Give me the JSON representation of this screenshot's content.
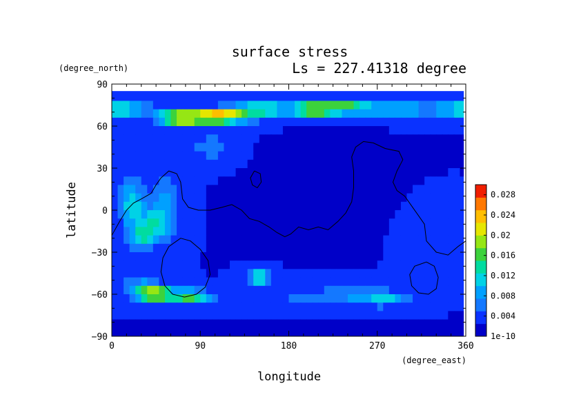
{
  "chart_data": {
    "type": "heatmap",
    "title": "surface stress",
    "subtitle": "Ls = 227.41318 degree",
    "xlabel": "longitude",
    "ylabel": "latitude",
    "x_unit": "(degree_east)",
    "y_unit": "(degree_north)",
    "xlim": [
      0,
      360
    ],
    "ylim": [
      -90,
      90
    ],
    "xticks": [
      0,
      90,
      180,
      270,
      360
    ],
    "yticks": [
      90,
      60,
      30,
      0,
      -30,
      -60,
      -90
    ],
    "colorbar": {
      "min": 1e-10,
      "max": 0.03,
      "tick_labels": [
        "1e-10",
        "0.004",
        "0.008",
        "0.012",
        "0.016",
        "0.02",
        "0.024",
        "0.028"
      ],
      "tick_values": [
        0,
        0.004,
        0.008,
        0.012,
        0.016,
        0.02,
        0.024,
        0.028
      ],
      "colors": [
        "#0000c8",
        "#0a32ff",
        "#1478ff",
        "#00a0ff",
        "#00d2e6",
        "#00dca0",
        "#3cd23c",
        "#96e614",
        "#e6e600",
        "#ffbe00",
        "#ff7800",
        "#f01e00"
      ]
    },
    "field_blobs_comment_free": true,
    "field": {
      "background": 0.0025,
      "features": [
        {
          "lon": 0,
          "lat": 72,
          "sx": 35,
          "sy": 6,
          "v": 0.012
        },
        {
          "lon": 360,
          "lat": 72,
          "sx": 30,
          "sy": 6,
          "v": 0.011
        },
        {
          "lon": 70,
          "lat": 66,
          "sx": 22,
          "sy": 5,
          "v": 0.022
        },
        {
          "lon": 110,
          "lat": 67,
          "sx": 25,
          "sy": 5,
          "v": 0.023
        },
        {
          "lon": 150,
          "lat": 72,
          "sx": 25,
          "sy": 6,
          "v": 0.012
        },
        {
          "lon": 205,
          "lat": 72,
          "sx": 25,
          "sy": 5,
          "v": 0.018
        },
        {
          "lon": 240,
          "lat": 74,
          "sx": 25,
          "sy": 5,
          "v": 0.011
        },
        {
          "lon": 290,
          "lat": 72,
          "sx": 35,
          "sy": 6,
          "v": 0.008
        },
        {
          "lon": 100,
          "lat": 45,
          "sx": 20,
          "sy": 10,
          "v": 0.004
        },
        {
          "lon": 20,
          "lat": 5,
          "sx": 12,
          "sy": 18,
          "v": 0.009
        },
        {
          "lon": 45,
          "lat": -10,
          "sx": 18,
          "sy": 12,
          "v": 0.01
        },
        {
          "lon": 30,
          "lat": -20,
          "sx": 12,
          "sy": 8,
          "v": 0.008
        },
        {
          "lon": 55,
          "lat": 10,
          "sx": 15,
          "sy": 15,
          "v": 0.005
        },
        {
          "lon": 150,
          "lat": -48,
          "sx": 12,
          "sy": 5,
          "v": 0.012
        },
        {
          "lon": 45,
          "lat": -60,
          "sx": 18,
          "sy": 5,
          "v": 0.018
        },
        {
          "lon": 80,
          "lat": -62,
          "sx": 20,
          "sy": 5,
          "v": 0.013
        },
        {
          "lon": 30,
          "lat": -55,
          "sx": 20,
          "sy": 8,
          "v": 0.006
        },
        {
          "lon": 250,
          "lat": -60,
          "sx": 40,
          "sy": 8,
          "v": 0.005
        },
        {
          "lon": 280,
          "lat": -64,
          "sx": 20,
          "sy": 4,
          "v": 0.007
        },
        {
          "lon": 180,
          "lat": -66,
          "sx": 60,
          "sy": 6,
          "v": 0.003
        },
        {
          "lon": 180,
          "lat": -85,
          "sx": 200,
          "sy": 4,
          "v": -0.001
        },
        {
          "lon": 230,
          "lat": 10,
          "sx": 60,
          "sy": 25,
          "v": -0.001
        },
        {
          "lon": 320,
          "lat": -10,
          "sx": 30,
          "sy": 20,
          "v": 0.001
        }
      ]
    },
    "contours": [
      {
        "name": "coastline-west",
        "points": [
          [
            0,
            -18
          ],
          [
            8,
            -8
          ],
          [
            15,
            0
          ],
          [
            22,
            5
          ],
          [
            30,
            8
          ],
          [
            40,
            12
          ],
          [
            45,
            18
          ],
          [
            50,
            23
          ],
          [
            58,
            28
          ],
          [
            66,
            26
          ],
          [
            70,
            20
          ],
          [
            72,
            8
          ],
          [
            78,
            2
          ],
          [
            88,
            0
          ],
          [
            100,
            0
          ],
          [
            112,
            2
          ],
          [
            122,
            4
          ],
          [
            132,
            0
          ],
          [
            140,
            -6
          ],
          [
            150,
            -8
          ],
          [
            160,
            -12
          ],
          [
            168,
            -16
          ],
          [
            176,
            -19
          ],
          [
            182,
            -17
          ],
          [
            190,
            -12
          ],
          [
            200,
            -14
          ],
          [
            210,
            -12
          ],
          [
            220,
            -14
          ],
          [
            230,
            -8
          ],
          [
            238,
            -2
          ],
          [
            244,
            6
          ],
          [
            246,
            16
          ],
          [
            246,
            28
          ],
          [
            244,
            38
          ],
          [
            248,
            45
          ],
          [
            256,
            49
          ],
          [
            266,
            48
          ],
          [
            278,
            44
          ],
          [
            292,
            42
          ],
          [
            296,
            36
          ],
          [
            290,
            28
          ],
          [
            286,
            20
          ],
          [
            290,
            14
          ],
          [
            298,
            10
          ],
          [
            304,
            4
          ],
          [
            312,
            -4
          ],
          [
            318,
            -10
          ],
          [
            320,
            -22
          ],
          [
            330,
            -30
          ],
          [
            342,
            -32
          ],
          [
            352,
            -26
          ],
          [
            360,
            -22
          ]
        ]
      },
      {
        "name": "crater-west",
        "points": [
          [
            70,
            -20
          ],
          [
            80,
            -22
          ],
          [
            90,
            -28
          ],
          [
            98,
            -36
          ],
          [
            100,
            -46
          ],
          [
            95,
            -55
          ],
          [
            86,
            -60
          ],
          [
            74,
            -62
          ],
          [
            62,
            -60
          ],
          [
            54,
            -54
          ],
          [
            50,
            -44
          ],
          [
            52,
            -34
          ],
          [
            58,
            -26
          ],
          [
            70,
            -20
          ]
        ]
      },
      {
        "name": "crater-east",
        "points": [
          [
            320,
            -37
          ],
          [
            328,
            -40
          ],
          [
            332,
            -48
          ],
          [
            330,
            -56
          ],
          [
            322,
            -60
          ],
          [
            312,
            -59
          ],
          [
            305,
            -54
          ],
          [
            303,
            -46
          ],
          [
            308,
            -40
          ],
          [
            320,
            -37
          ]
        ]
      },
      {
        "name": "island",
        "points": [
          [
            145,
            28
          ],
          [
            151,
            26
          ],
          [
            152,
            20
          ],
          [
            148,
            16
          ],
          [
            143,
            18
          ],
          [
            141,
            23
          ],
          [
            145,
            28
          ]
        ]
      }
    ]
  }
}
